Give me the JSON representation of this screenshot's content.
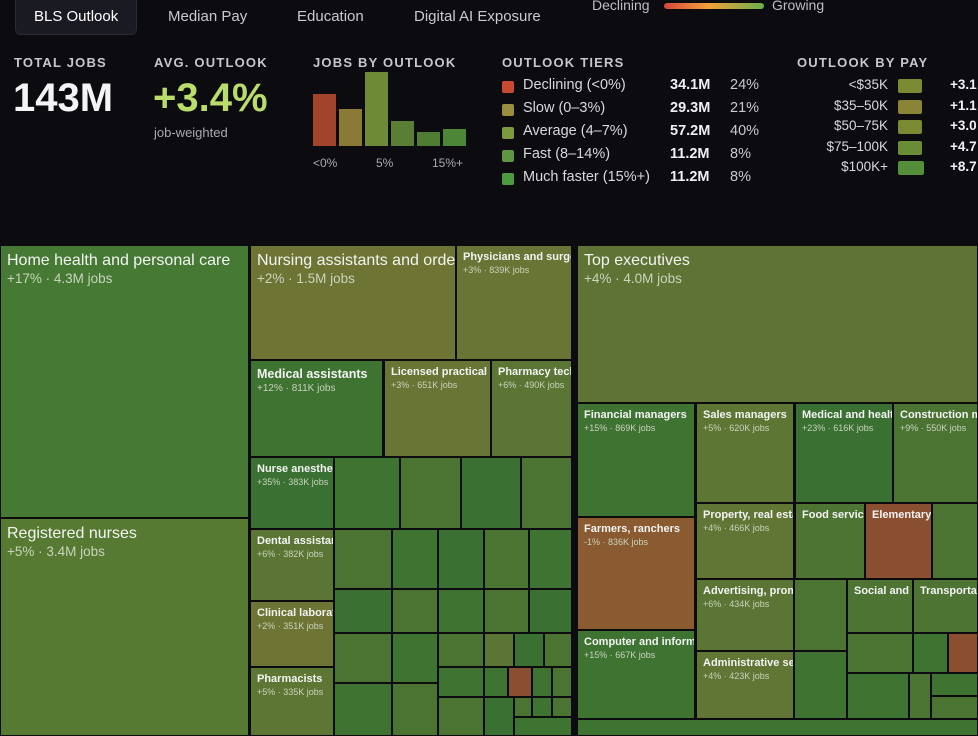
{
  "tabs": [
    "BLS Outlook",
    "Median Pay",
    "Education",
    "Digital AI Exposure"
  ],
  "legend": {
    "left": "Declining",
    "right": "Growing"
  },
  "kpis": {
    "total_jobs_label": "TOTAL JOBS",
    "total_jobs_value": "143M",
    "avg_outlook_label": "AVG. OUTLOOK",
    "avg_outlook_value": "+3.4%",
    "avg_outlook_sub": "job-weighted"
  },
  "jobs_by_outlook": {
    "label": "JOBS BY OUTLOOK",
    "ticks": [
      "<0%",
      "5%",
      "15%+"
    ],
    "bars": [
      {
        "value": 34.1,
        "color": "#a2432c"
      },
      {
        "value": 24.5,
        "color": "#8a7a36"
      },
      {
        "value": 48.9,
        "color": "#6e8a36"
      },
      {
        "value": 16.2,
        "color": "#5a7f34"
      },
      {
        "value": 9.5,
        "color": "#4f7e33"
      },
      {
        "value": 11.2,
        "color": "#4d8636"
      }
    ],
    "max": 50
  },
  "tiers": {
    "label": "OUTLOOK TIERS",
    "rows": [
      {
        "name": "Declining (<0%)",
        "jobs": "34.1M",
        "pct": "24%",
        "color": "#c94a32"
      },
      {
        "name": "Slow (0–3%)",
        "jobs": "29.3M",
        "pct": "21%",
        "color": "#9a8f3c"
      },
      {
        "name": "Average (4–7%)",
        "jobs": "57.2M",
        "pct": "40%",
        "color": "#7c9a3e"
      },
      {
        "name": "Fast (8–14%)",
        "jobs": "11.2M",
        "pct": "8%",
        "color": "#5f9440"
      },
      {
        "name": "Much faster (15%+)",
        "jobs": "11.2M",
        "pct": "8%",
        "color": "#4e9a40"
      }
    ]
  },
  "outlook_by_pay": {
    "label": "OUTLOOK BY PAY",
    "rows": [
      {
        "label": "<$35K",
        "value": "+3.1",
        "size": 0.55,
        "color": "#7a8a32"
      },
      {
        "label": "$35–50K",
        "value": "+1.1",
        "size": 0.55,
        "color": "#8a8436"
      },
      {
        "label": "$50–75K",
        "value": "+3.0",
        "size": 0.55,
        "color": "#7a8a32"
      },
      {
        "label": "$75–100K",
        "value": "+4.7",
        "size": 0.6,
        "color": "#6a8c36"
      },
      {
        "label": "$100K+",
        "value": "+8.7",
        "size": 0.8,
        "color": "#558e38"
      }
    ]
  },
  "treemap": {
    "cells": [
      {
        "title": "Home health and personal care",
        "sub": "+17% · 4.3M jobs",
        "color": "#467a34",
        "size": "big"
      },
      {
        "title": "Registered nurses",
        "sub": "+5% · 3.4M jobs",
        "color": "#577a32",
        "size": "big"
      },
      {
        "title": "Nursing assistants and orderlies",
        "sub": "+2% · 1.5M jobs",
        "color": "#6e7534",
        "size": "big"
      },
      {
        "title": "Physicians and surgeons",
        "sub": "+3% · 839K jobs",
        "color": "#687534",
        "size": "sm"
      },
      {
        "title": "Medical assistants",
        "sub": "+12% · 811K jobs",
        "color": "#3f7332",
        "size": "med"
      },
      {
        "title": "Licensed practical nurses",
        "sub": "+3% · 651K jobs",
        "color": "#687534",
        "size": "sm"
      },
      {
        "title": "Pharmacy technicians",
        "sub": "+6% · 490K jobs",
        "color": "#5b7634",
        "size": "sm"
      },
      {
        "title": "Nurse anesthetists",
        "sub": "+35% · 383K jobs",
        "color": "#3a7032",
        "size": "sm"
      },
      {
        "title": "Dental assistants",
        "sub": "+6% · 382K jobs",
        "color": "#5b7634",
        "size": "sm"
      },
      {
        "title": "Clinical laboratory technologists",
        "sub": "+2% · 351K jobs",
        "color": "#6e7534",
        "size": "sm"
      },
      {
        "title": "Pharmacists",
        "sub": "+5% · 335K jobs",
        "color": "#5e7634",
        "size": "sm"
      },
      {
        "title": "Top executives",
        "sub": "+4% · 4.0M jobs",
        "color": "#5f7434",
        "size": "big"
      },
      {
        "title": "Financial managers",
        "sub": "+15% · 869K jobs",
        "color": "#3f7332",
        "size": "sm"
      },
      {
        "title": "Sales managers",
        "sub": "+5% · 620K jobs",
        "color": "#5e7634",
        "size": "sm"
      },
      {
        "title": "Medical and health services managers",
        "sub": "+23% · 616K jobs",
        "color": "#3a7032",
        "size": "sm"
      },
      {
        "title": "Construction managers",
        "sub": "+9% · 550K jobs",
        "color": "#4b7433",
        "size": "sm"
      },
      {
        "title": "Farmers, ranchers",
        "sub": "-1% · 836K jobs",
        "color": "#8a5a30",
        "size": "sm"
      },
      {
        "title": "Property, real estate managers",
        "sub": "+4% · 466K jobs",
        "color": "#617534",
        "size": "sm"
      },
      {
        "title": "Food service managers",
        "sub": "",
        "color": "#4e7433",
        "size": "sm"
      },
      {
        "title": "Elementary",
        "sub": "",
        "color": "#8a4e30",
        "size": "sm"
      },
      {
        "title": "Advertising, promotions managers",
        "sub": "+6% · 434K jobs",
        "color": "#5b7634",
        "size": "sm"
      },
      {
        "title": "Social and",
        "sub": "",
        "color": "#4e7433",
        "size": "sm"
      },
      {
        "title": "Transportation",
        "sub": "",
        "color": "#4e7433",
        "size": "sm"
      },
      {
        "title": "Computer and information systems managers",
        "sub": "+15% · 667K jobs",
        "color": "#3f7332",
        "size": "sm"
      },
      {
        "title": "Administrative services managers",
        "sub": "+4% · 423K jobs",
        "color": "#617534",
        "size": "sm"
      }
    ]
  }
}
